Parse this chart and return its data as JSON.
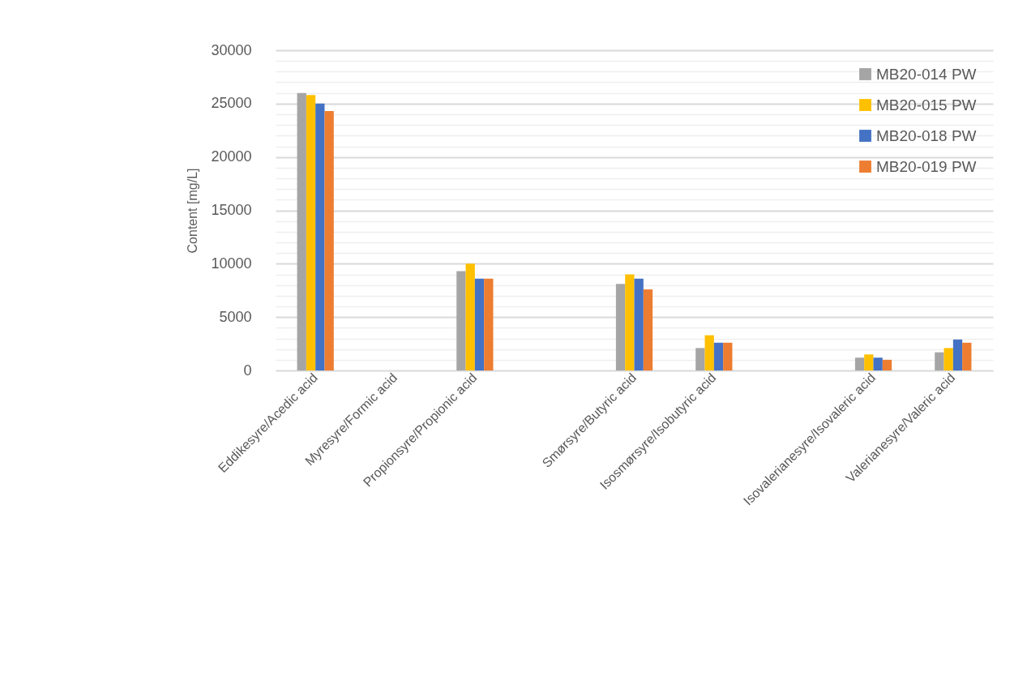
{
  "chart_data": {
    "type": "bar",
    "ylabel": "Content [mg/L]",
    "categories": [
      "Eddikesyre/Acedic acid",
      "Myresyre/Formic acid",
      "Propionsyre/Propionic acid",
      null,
      "Smørsyre/Butyric acid",
      "Isosmørsyre/Isobutyric acid",
      null,
      "Isovalerianesyre/Isovaleric acid",
      "Valerianesyre/Valeric acid"
    ],
    "series": [
      {
        "name": "MB20-014 PW",
        "color": "#a5a5a5",
        "values": [
          26000,
          null,
          9300,
          null,
          8100,
          2100,
          null,
          1200,
          1700
        ]
      },
      {
        "name": "MB20-015 PW",
        "color": "#ffc000",
        "values": [
          25800,
          null,
          10000,
          null,
          9000,
          3300,
          null,
          1500,
          2100
        ]
      },
      {
        "name": "MB20-018 PW",
        "color": "#4472c4",
        "values": [
          25000,
          null,
          8600,
          null,
          8600,
          2600,
          null,
          1200,
          2900
        ]
      },
      {
        "name": "MB20-019 PW",
        "color": "#ed7d31",
        "values": [
          24300,
          null,
          8600,
          null,
          7600,
          2600,
          null,
          1000,
          2600
        ]
      }
    ],
    "ylim": [
      0,
      30000
    ],
    "yticks": [
      0,
      {
        "value": 1000,
        "label": null
      },
      {
        "value": 2000,
        "label": null
      },
      {
        "value": 3000,
        "label": null
      },
      {
        "value": 4000,
        "label": null
      },
      5000,
      {
        "value": 6000,
        "label": null
      },
      {
        "value": 7000,
        "label": null
      },
      {
        "value": 8000,
        "label": null
      },
      {
        "value": 9000,
        "label": null
      },
      10000,
      {
        "value": 11000,
        "label": null
      },
      {
        "value": 12000,
        "label": null
      },
      {
        "value": 13000,
        "label": null
      },
      {
        "value": 14000,
        "label": null
      },
      15000,
      {
        "value": 16000,
        "label": null
      },
      {
        "value": 17000,
        "label": null
      },
      {
        "value": 18000,
        "label": null
      },
      {
        "value": 19000,
        "label": null
      },
      20000,
      {
        "value": 21000,
        "label": null
      },
      {
        "value": 22000,
        "label": null
      },
      {
        "value": 23000,
        "label": null
      },
      {
        "value": 24000,
        "label": null
      },
      25000,
      {
        "value": 26000,
        "label": null
      },
      {
        "value": 27000,
        "label": null
      },
      {
        "value": 28000,
        "label": null
      },
      {
        "value": 29000,
        "label": null
      },
      30000
    ],
    "grid": "y",
    "legend": "top right"
  }
}
